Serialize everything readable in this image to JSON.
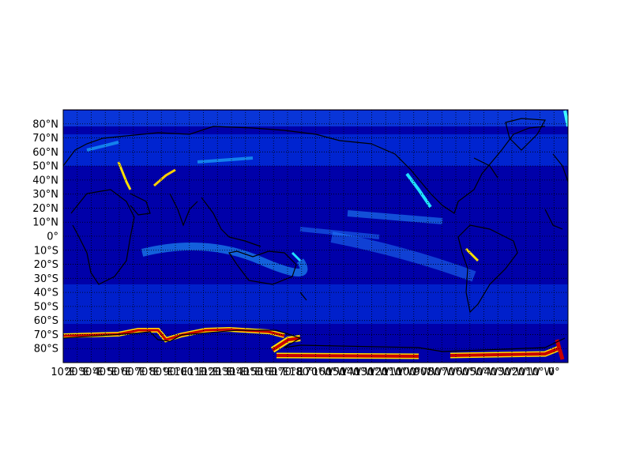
{
  "map": {
    "projection": "cylindrical",
    "lon_range": [
      10,
      370
    ],
    "lat_range": [
      -90,
      90
    ],
    "lat_labels": [
      "80°N",
      "70°N",
      "60°N",
      "50°N",
      "40°N",
      "30°N",
      "20°N",
      "10°N",
      "0°",
      "10°S",
      "20°S",
      "30°S",
      "40°S",
      "50°S",
      "60°S",
      "70°S",
      "80°S"
    ],
    "lon_labels": [
      "10°E",
      "20°E",
      "30°E",
      "40°E",
      "50°E",
      "60°E",
      "70°E",
      "80°E",
      "90°E",
      "100°E",
      "110°E",
      "120°E",
      "130°E",
      "140°E",
      "150°E",
      "160°E",
      "170°E",
      "180°",
      "170°W",
      "160°W",
      "150°W",
      "140°W",
      "130°W",
      "120°W",
      "110°W",
      "100°W",
      "90°W",
      "80°W",
      "70°W",
      "60°W",
      "50°W",
      "40°W",
      "30°W",
      "20°W",
      "10°W",
      "0°"
    ],
    "grid": true,
    "grid_style": "dotted",
    "colormap": "jet",
    "colors": {
      "background": "#00008f",
      "low": "#0000c8",
      "mid": "#0050ff",
      "high_cyan": "#20e0ff",
      "yellow": "#ffe000",
      "red": "#c80000",
      "coastline": "#000000"
    }
  }
}
